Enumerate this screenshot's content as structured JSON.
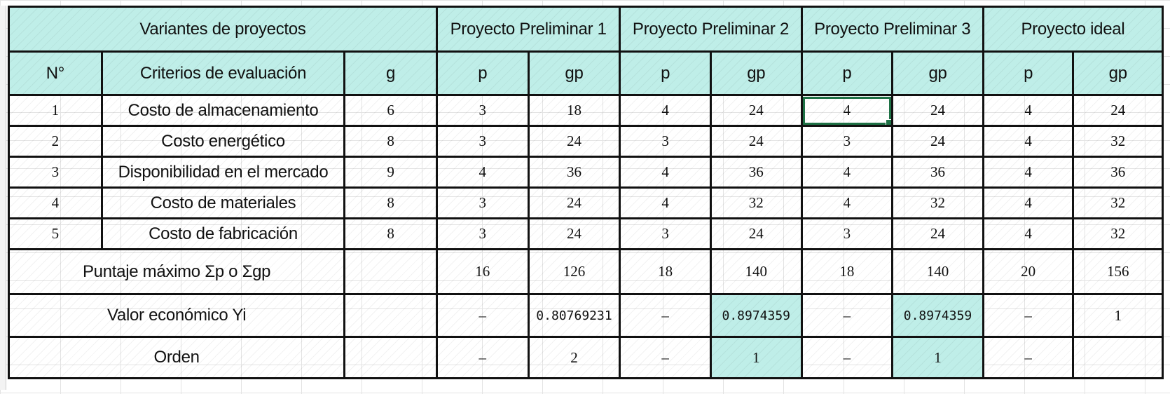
{
  "header_top": {
    "variantes": "Variantes de proyectos",
    "pp1": "Proyecto Preliminar 1",
    "pp2": "Proyecto Preliminar 2",
    "pp3": "Proyecto Preliminar 3",
    "ideal": "Proyecto ideal"
  },
  "header_sub": {
    "no": "N°",
    "criterios": "Criterios de evaluación",
    "g": "g",
    "pp1_p": "p",
    "pp1_gp": "gp",
    "pp2_p": "p",
    "pp2_gp": "gp",
    "pp3_p": "p",
    "pp3_gp": "gp",
    "ideal_p": "p",
    "ideal_gp": "gp"
  },
  "rows": [
    {
      "n": "1",
      "criterio": "Costo de almacenamiento",
      "g": "6",
      "p1": "3",
      "gp1": "18",
      "p2": "4",
      "gp2": "24",
      "p3": "4",
      "gp3": "24",
      "pi": "4",
      "gpi": "24"
    },
    {
      "n": "2",
      "criterio": "Costo energético",
      "g": "8",
      "p1": "3",
      "gp1": "24",
      "p2": "3",
      "gp2": "24",
      "p3": "3",
      "gp3": "24",
      "pi": "4",
      "gpi": "32"
    },
    {
      "n": "3",
      "criterio": "Disponibilidad en el mercado",
      "g": "9",
      "p1": "4",
      "gp1": "36",
      "p2": "4",
      "gp2": "36",
      "p3": "4",
      "gp3": "36",
      "pi": "4",
      "gpi": "36"
    },
    {
      "n": "4",
      "criterio": "Costo de materiales",
      "g": "8",
      "p1": "3",
      "gp1": "24",
      "p2": "4",
      "gp2": "32",
      "p3": "4",
      "gp3": "32",
      "pi": "4",
      "gpi": "32"
    },
    {
      "n": "5",
      "criterio": "Costo de fabricación",
      "g": "8",
      "p1": "3",
      "gp1": "24",
      "p2": "3",
      "gp2": "24",
      "p3": "3",
      "gp3": "24",
      "pi": "4",
      "gpi": "32"
    }
  ],
  "puntaje": {
    "label": "Puntaje máximo Σp o Σgp",
    "p1": "16",
    "gp1": "126",
    "p2": "18",
    "gp2": "140",
    "p3": "18",
    "gp3": "140",
    "pi": "20",
    "gpi": "156"
  },
  "valor": {
    "label": "Valor económico Yi",
    "p1": "–",
    "gp1": "0.80769231",
    "p2": "–",
    "gp2": "0.8974359",
    "p3": "–",
    "gp3": "0.8974359",
    "pi": "–",
    "gpi": "1"
  },
  "orden": {
    "label": "Orden",
    "p1": "–",
    "gp1": "2",
    "p2": "–",
    "gp2": "1",
    "p3": "–",
    "gp3": "1",
    "pi": "–",
    "gpi": ""
  },
  "colors": {
    "header_fill": "#bfeee8",
    "border": "#111111",
    "selection": "#1e7145"
  }
}
